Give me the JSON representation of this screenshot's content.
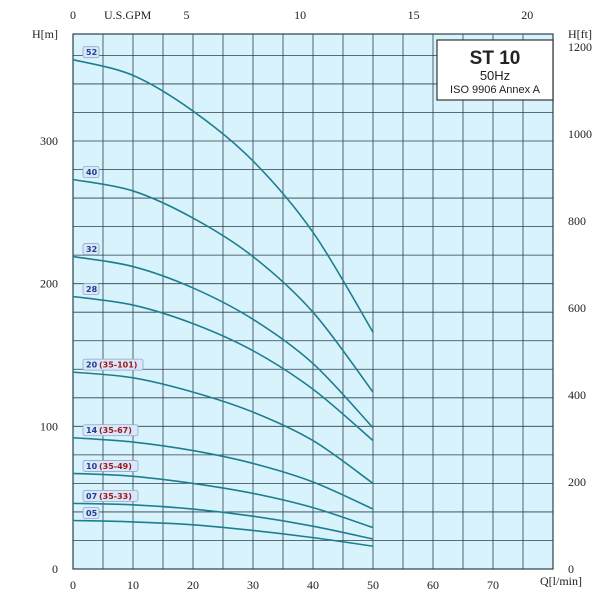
{
  "chart_data": {
    "type": "line",
    "title_box": {
      "model": "ST 10",
      "frequency": "50Hz",
      "standard": "ISO 9906 Annex A"
    },
    "axes": {
      "x_bottom": {
        "label": "Q[l/min]",
        "range": [
          0,
          80
        ],
        "ticks": [
          "0",
          "10",
          "20",
          "30",
          "40",
          "50",
          "60",
          "70"
        ]
      },
      "x_top": {
        "label": "U.S.GPM",
        "range": [
          0,
          21.13
        ],
        "ticks": [
          "0",
          "5",
          "10",
          "15",
          "20"
        ]
      },
      "y_left": {
        "label": "H[m]",
        "range": [
          0,
          375
        ],
        "ticks": [
          "0",
          "100",
          "200",
          "300"
        ]
      },
      "y_right": {
        "label": "H[ft]",
        "range": [
          0,
          1230
        ],
        "ticks": [
          "0",
          "200",
          "400",
          "600",
          "800",
          "1000",
          "1200"
        ]
      }
    },
    "grid": true,
    "series": [
      {
        "name": "52",
        "label_a": "52",
        "label_b": "",
        "x": [
          0,
          10,
          20,
          30,
          40,
          50
        ],
        "y": [
          357,
          346,
          321,
          286,
          236,
          166
        ]
      },
      {
        "name": "40",
        "label_a": "40",
        "label_b": "",
        "x": [
          0,
          10,
          20,
          30,
          40,
          50
        ],
        "y": [
          273,
          265,
          246,
          219,
          180,
          124
        ]
      },
      {
        "name": "32",
        "label_a": "32",
        "label_b": "",
        "x": [
          0,
          10,
          20,
          30,
          40,
          50
        ],
        "y": [
          219,
          212,
          197,
          175,
          144,
          99
        ]
      },
      {
        "name": "28",
        "label_a": "28",
        "label_b": "",
        "x": [
          0,
          10,
          20,
          30,
          40,
          50
        ],
        "y": [
          191,
          185,
          172,
          153,
          126,
          90
        ]
      },
      {
        "name": "20 (35-101)",
        "label_a": "20",
        "label_b": "(35-101)",
        "x": [
          0,
          10,
          20,
          30,
          40,
          50
        ],
        "y": [
          138,
          134,
          124,
          110,
          90,
          60
        ]
      },
      {
        "name": "14 (35-67)",
        "label_a": "14",
        "label_b": "(35-67)",
        "x": [
          0,
          10,
          20,
          30,
          40,
          50
        ],
        "y": [
          92,
          89,
          83,
          74,
          61,
          42
        ]
      },
      {
        "name": "10 (35-49)",
        "label_a": "10",
        "label_b": "(35-49)",
        "x": [
          0,
          10,
          20,
          30,
          40,
          50
        ],
        "y": [
          67,
          65,
          60,
          53,
          43,
          29
        ]
      },
      {
        "name": "07 (35-33)",
        "label_a": "07",
        "label_b": "(35-33)",
        "x": [
          0,
          10,
          20,
          30,
          40,
          50
        ],
        "y": [
          46,
          45,
          42,
          37,
          30,
          21
        ]
      },
      {
        "name": "05",
        "label_a": "05",
        "label_b": "",
        "x": [
          0,
          10,
          20,
          30,
          40,
          50
        ],
        "y": [
          34,
          33,
          31,
          27,
          22,
          16
        ]
      }
    ]
  }
}
